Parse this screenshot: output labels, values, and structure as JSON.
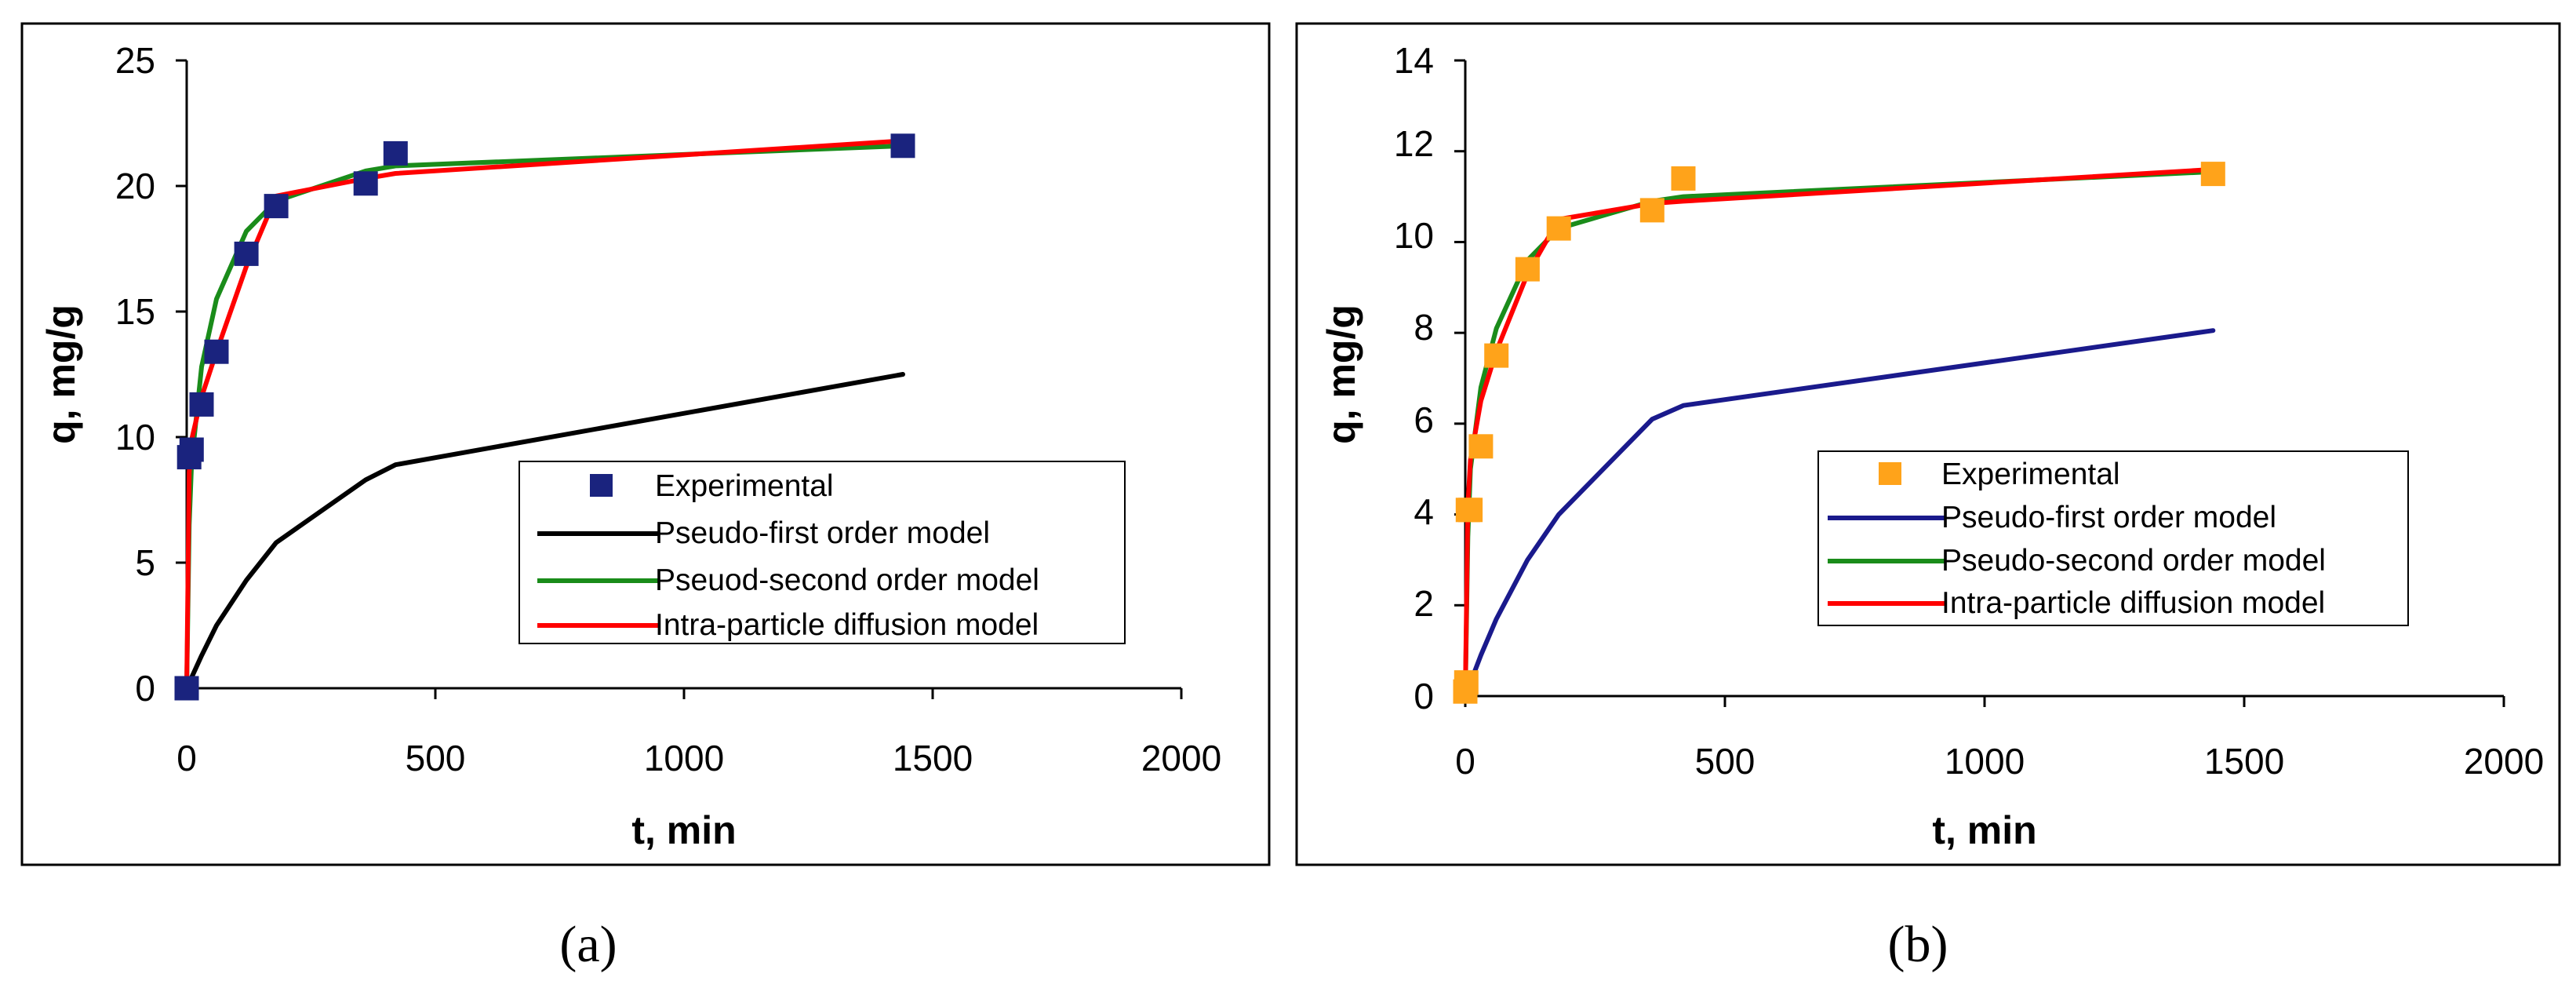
{
  "chart_data": [
    {
      "panel_id": "a",
      "type": "line",
      "caption": "(a)",
      "xlabel": "t, min",
      "ylabel": "q, mg/g",
      "xlim": [
        0,
        2000
      ],
      "ylim": [
        0,
        25
      ],
      "xticks": [
        0,
        500,
        1000,
        1500,
        2000
      ],
      "yticks": [
        0,
        5,
        10,
        15,
        20,
        25
      ],
      "grid": false,
      "legend_placement": "bottom-right",
      "colors": {
        "experimental": "#1a237e",
        "first_order": "#000000",
        "second_order": "#1a8c1a",
        "intra_particle": "#ff0000"
      },
      "experimental": {
        "name": "Experimental",
        "marker": "square",
        "x": [
          0,
          5,
          10,
          30,
          60,
          120,
          180,
          360,
          420,
          1440
        ],
        "y": [
          0,
          9.2,
          9.5,
          11.3,
          13.4,
          17.3,
          19.2,
          20.1,
          21.3,
          21.6
        ]
      },
      "series": [
        {
          "key": "first_order",
          "name": "Pseudo-first order model",
          "x": [
            0,
            30,
            60,
            120,
            180,
            360,
            420,
            1440
          ],
          "y": [
            0,
            1.3,
            2.5,
            4.3,
            5.8,
            8.3,
            8.9,
            12.5
          ]
        },
        {
          "key": "second_order",
          "name": "Pseuod-second order model",
          "x": [
            0,
            5,
            10,
            30,
            60,
            120,
            180,
            360,
            420,
            1440
          ],
          "y": [
            0,
            6.5,
            9.0,
            12.8,
            15.5,
            18.2,
            19.4,
            20.6,
            20.8,
            21.6
          ]
        },
        {
          "key": "intra_particle",
          "name": "Intra-particle diffusion model",
          "x": [
            0,
            5,
            10,
            30,
            60,
            120,
            180,
            360,
            420,
            1440
          ],
          "y": [
            0,
            8.6,
            9.9,
            11.6,
            13.4,
            16.8,
            19.6,
            20.3,
            20.5,
            21.8
          ]
        }
      ]
    },
    {
      "panel_id": "b",
      "type": "line",
      "caption": "(b)",
      "xlabel": "t, min",
      "ylabel": "q, mg/g",
      "xlim": [
        0,
        2000
      ],
      "ylim": [
        0,
        14
      ],
      "xticks": [
        0,
        500,
        1000,
        1500,
        2000
      ],
      "yticks": [
        0,
        2,
        4,
        6,
        8,
        10,
        12,
        14
      ],
      "grid": false,
      "legend_placement": "center-right",
      "colors": {
        "experimental": "#ffa31a",
        "first_order": "#1a1a8c",
        "second_order": "#1a8c1a",
        "intra_particle": "#ff0000"
      },
      "experimental": {
        "name": "Experimental",
        "marker": "square",
        "x": [
          0,
          2,
          5,
          10,
          30,
          60,
          120,
          180,
          360,
          420,
          1440
        ],
        "y": [
          0.1,
          0.3,
          4.1,
          4.1,
          5.5,
          7.5,
          9.4,
          10.3,
          10.7,
          11.4,
          11.5
        ]
      },
      "series": [
        {
          "key": "first_order",
          "name": "Pseudo-first order model",
          "x": [
            0,
            30,
            60,
            120,
            180,
            360,
            420,
            1440
          ],
          "y": [
            0,
            0.9,
            1.7,
            3.0,
            4.0,
            6.1,
            6.4,
            8.05
          ]
        },
        {
          "key": "second_order",
          "name": "Pseudo-second order model",
          "x": [
            0,
            5,
            10,
            30,
            60,
            120,
            180,
            360,
            420,
            1440
          ],
          "y": [
            0,
            3.5,
            5.0,
            6.8,
            8.1,
            9.6,
            10.3,
            10.9,
            11.0,
            11.55
          ]
        },
        {
          "key": "intra_particle",
          "name": "Intra-particle diffusion model",
          "x": [
            0,
            5,
            10,
            30,
            60,
            120,
            180,
            360,
            420,
            1440
          ],
          "y": [
            0,
            4.2,
            5.2,
            6.5,
            7.6,
            9.3,
            10.5,
            10.85,
            10.9,
            11.6
          ]
        }
      ]
    }
  ]
}
